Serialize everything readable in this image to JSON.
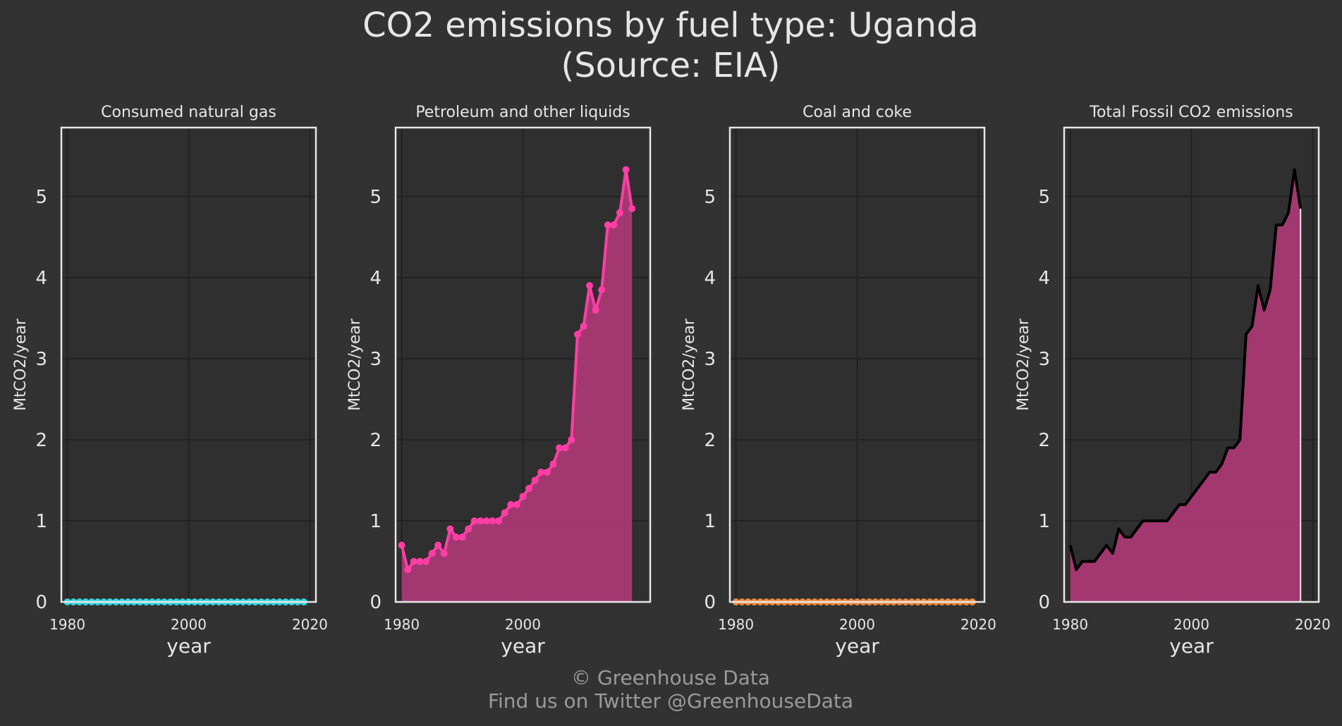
{
  "title_line1": "CO2 emissions by fuel type: Uganda",
  "title_line2": "(Source: EIA)",
  "footer_line1": "© Greenhouse Data",
  "footer_line2": "Find us on Twitter @GreenhouseData",
  "colors": {
    "background": "#323232",
    "grid": "#222222",
    "frame": "#e6e6e6",
    "gas": "#33d6e0",
    "petroleum": "#ff3ea5",
    "petroleum_fill": "#b03a79",
    "coal": "#f08a3c",
    "total_line": "#000000",
    "total_fill": "#b03a79"
  },
  "chart_data": [
    {
      "type": "line",
      "title": "Consumed natural gas",
      "xlabel": "year",
      "ylabel": "MtCO2/year",
      "xlim": [
        1979,
        2021
      ],
      "ylim": [
        0,
        5.85
      ],
      "xticks": [
        1980,
        2000,
        2020
      ],
      "yticks": [
        0,
        1,
        2,
        3,
        4,
        5
      ],
      "grid": true,
      "fill": false,
      "markers": true,
      "color_key": "gas",
      "x": [
        1980,
        1981,
        1982,
        1983,
        1984,
        1985,
        1986,
        1987,
        1988,
        1989,
        1990,
        1991,
        1992,
        1993,
        1994,
        1995,
        1996,
        1997,
        1998,
        1999,
        2000,
        2001,
        2002,
        2003,
        2004,
        2005,
        2006,
        2007,
        2008,
        2009,
        2010,
        2011,
        2012,
        2013,
        2014,
        2015,
        2016,
        2017,
        2018,
        2019
      ],
      "y": [
        0,
        0,
        0,
        0,
        0,
        0,
        0,
        0,
        0,
        0,
        0,
        0,
        0,
        0,
        0,
        0,
        0,
        0,
        0,
        0,
        0,
        0,
        0,
        0,
        0,
        0,
        0,
        0,
        0,
        0,
        0,
        0,
        0,
        0,
        0,
        0,
        0,
        0,
        0,
        0
      ]
    },
    {
      "type": "area",
      "title": "Petroleum and other liquids",
      "xlabel": "year",
      "ylabel": "MtCO2/year",
      "xlim": [
        1979,
        2021
      ],
      "ylim": [
        0,
        5.85
      ],
      "xticks": [
        1980,
        2000
      ],
      "yticks": [
        0,
        1,
        2,
        3,
        4,
        5
      ],
      "grid": true,
      "fill": true,
      "markers": true,
      "color_key": "petroleum",
      "fill_key": "petroleum_fill",
      "x": [
        1980,
        1981,
        1982,
        1983,
        1984,
        1985,
        1986,
        1987,
        1988,
        1989,
        1990,
        1991,
        1992,
        1993,
        1994,
        1995,
        1996,
        1997,
        1998,
        1999,
        2000,
        2001,
        2002,
        2003,
        2004,
        2005,
        2006,
        2007,
        2008,
        2009,
        2010,
        2011,
        2012,
        2013,
        2014,
        2015,
        2016,
        2017,
        2018
      ],
      "y": [
        0.7,
        0.4,
        0.5,
        0.5,
        0.5,
        0.6,
        0.7,
        0.6,
        0.9,
        0.8,
        0.8,
        0.9,
        1.0,
        1.0,
        1.0,
        1.0,
        1.0,
        1.1,
        1.2,
        1.2,
        1.3,
        1.4,
        1.5,
        1.6,
        1.6,
        1.7,
        1.9,
        1.9,
        2.0,
        3.3,
        3.4,
        3.9,
        3.6,
        3.85,
        4.65,
        4.65,
        4.8,
        5.33,
        4.85
      ]
    },
    {
      "type": "line",
      "title": "Coal and coke",
      "xlabel": "year",
      "ylabel": "MtCO2/year",
      "xlim": [
        1979,
        2021
      ],
      "ylim": [
        0,
        5.85
      ],
      "xticks": [
        1980,
        2000,
        2020
      ],
      "yticks": [
        0,
        1,
        2,
        3,
        4,
        5
      ],
      "grid": true,
      "fill": false,
      "markers": true,
      "color_key": "coal",
      "x": [
        1980,
        1981,
        1982,
        1983,
        1984,
        1985,
        1986,
        1987,
        1988,
        1989,
        1990,
        1991,
        1992,
        1993,
        1994,
        1995,
        1996,
        1997,
        1998,
        1999,
        2000,
        2001,
        2002,
        2003,
        2004,
        2005,
        2006,
        2007,
        2008,
        2009,
        2010,
        2011,
        2012,
        2013,
        2014,
        2015,
        2016,
        2017,
        2018,
        2019
      ],
      "y": [
        0,
        0,
        0,
        0,
        0,
        0,
        0,
        0,
        0,
        0,
        0,
        0,
        0,
        0,
        0,
        0,
        0,
        0,
        0,
        0,
        0,
        0,
        0,
        0,
        0,
        0,
        0,
        0,
        0,
        0,
        0,
        0,
        0,
        0,
        0,
        0,
        0,
        0,
        0,
        0
      ]
    },
    {
      "type": "area",
      "title": "Total Fossil CO2 emissions",
      "xlabel": "year",
      "ylabel": "MtCO2/year",
      "xlim": [
        1979,
        2021
      ],
      "ylim": [
        0,
        5.85
      ],
      "xticks": [
        1980,
        2000,
        2020
      ],
      "yticks": [
        0,
        1,
        2,
        3,
        4,
        5
      ],
      "grid": true,
      "fill": true,
      "markers": false,
      "color_key": "total_line",
      "fill_key": "total_fill",
      "x": [
        1980,
        1981,
        1982,
        1983,
        1984,
        1985,
        1986,
        1987,
        1988,
        1989,
        1990,
        1991,
        1992,
        1993,
        1994,
        1995,
        1996,
        1997,
        1998,
        1999,
        2000,
        2001,
        2002,
        2003,
        2004,
        2005,
        2006,
        2007,
        2008,
        2009,
        2010,
        2011,
        2012,
        2013,
        2014,
        2015,
        2016,
        2017,
        2018
      ],
      "y": [
        0.7,
        0.4,
        0.5,
        0.5,
        0.5,
        0.6,
        0.7,
        0.6,
        0.9,
        0.8,
        0.8,
        0.9,
        1.0,
        1.0,
        1.0,
        1.0,
        1.0,
        1.1,
        1.2,
        1.2,
        1.3,
        1.4,
        1.5,
        1.6,
        1.6,
        1.7,
        1.9,
        1.9,
        2.0,
        3.3,
        3.4,
        3.9,
        3.6,
        3.85,
        4.65,
        4.65,
        4.8,
        5.33,
        4.85
      ]
    }
  ]
}
